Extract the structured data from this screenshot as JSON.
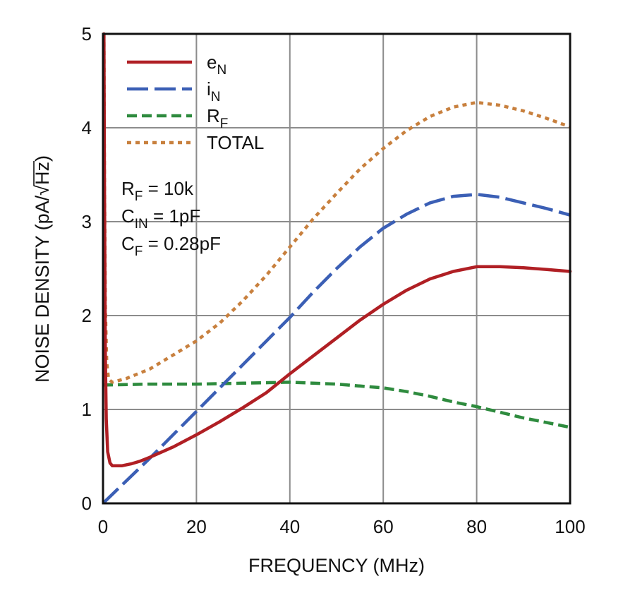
{
  "chart_data": {
    "type": "line",
    "xlabel": "FREQUENCY (MHz)",
    "ylabel_text": "NOISE DENSITY (pA/",
    "ylabel_radical": "√",
    "ylabel_radicand": "Hz",
    "ylabel_close": ")",
    "xlim": [
      0,
      100
    ],
    "ylim": [
      0,
      5
    ],
    "xticks": [
      "0",
      "20",
      "40",
      "60",
      "80",
      "100"
    ],
    "yticks": [
      "0",
      "1",
      "2",
      "3",
      "4",
      "5"
    ],
    "grid": true,
    "legend_position": "top-left",
    "series": [
      {
        "key": "eN",
        "name_main": "e",
        "name_sub": "N",
        "color": "#b01f24",
        "dash": "solid",
        "points": [
          [
            0.2,
            5.0
          ],
          [
            0.3,
            3.5
          ],
          [
            0.5,
            1.6
          ],
          [
            0.7,
            0.9
          ],
          [
            1,
            0.55
          ],
          [
            1.5,
            0.43
          ],
          [
            2,
            0.4
          ],
          [
            4,
            0.4
          ],
          [
            6,
            0.42
          ],
          [
            8,
            0.45
          ],
          [
            10,
            0.49
          ],
          [
            15,
            0.6
          ],
          [
            20,
            0.73
          ],
          [
            25,
            0.87
          ],
          [
            30,
            1.02
          ],
          [
            35,
            1.18
          ],
          [
            40,
            1.38
          ],
          [
            45,
            1.57
          ],
          [
            50,
            1.76
          ],
          [
            55,
            1.95
          ],
          [
            60,
            2.12
          ],
          [
            65,
            2.27
          ],
          [
            70,
            2.39
          ],
          [
            75,
            2.47
          ],
          [
            80,
            2.52
          ],
          [
            85,
            2.52
          ],
          [
            90,
            2.51
          ],
          [
            95,
            2.49
          ],
          [
            100,
            2.47
          ]
        ]
      },
      {
        "key": "iN",
        "name_main": "i",
        "name_sub": "N",
        "color": "#3b5fb5",
        "dash": "long-dash",
        "points": [
          [
            0,
            0
          ],
          [
            5,
            0.24
          ],
          [
            10,
            0.48
          ],
          [
            15,
            0.73
          ],
          [
            20,
            0.98
          ],
          [
            25,
            1.23
          ],
          [
            30,
            1.48
          ],
          [
            35,
            1.73
          ],
          [
            40,
            1.98
          ],
          [
            45,
            2.25
          ],
          [
            50,
            2.5
          ],
          [
            55,
            2.73
          ],
          [
            60,
            2.93
          ],
          [
            65,
            3.08
          ],
          [
            70,
            3.2
          ],
          [
            75,
            3.27
          ],
          [
            80,
            3.29
          ],
          [
            85,
            3.26
          ],
          [
            90,
            3.2
          ],
          [
            95,
            3.14
          ],
          [
            100,
            3.07
          ]
        ]
      },
      {
        "key": "RF",
        "name_main": "R",
        "name_sub": "F",
        "color": "#2e8b3e",
        "dash": "dash",
        "points": [
          [
            0,
            1.26
          ],
          [
            10,
            1.27
          ],
          [
            20,
            1.27
          ],
          [
            30,
            1.28
          ],
          [
            40,
            1.29
          ],
          [
            50,
            1.27
          ],
          [
            55,
            1.25
          ],
          [
            60,
            1.23
          ],
          [
            65,
            1.19
          ],
          [
            70,
            1.14
          ],
          [
            75,
            1.08
          ],
          [
            80,
            1.03
          ],
          [
            85,
            0.97
          ],
          [
            90,
            0.91
          ],
          [
            95,
            0.86
          ],
          [
            100,
            0.81
          ]
        ]
      },
      {
        "key": "TOTAL",
        "name_main": "TOTAL",
        "name_sub": "",
        "color": "#c8803e",
        "dash": "dot",
        "points": [
          [
            0.2,
            5.0
          ],
          [
            0.3,
            3.6
          ],
          [
            0.5,
            2.1
          ],
          [
            0.8,
            1.5
          ],
          [
            1.2,
            1.32
          ],
          [
            2,
            1.29
          ],
          [
            5,
            1.33
          ],
          [
            10,
            1.43
          ],
          [
            15,
            1.58
          ],
          [
            20,
            1.73
          ],
          [
            25,
            1.92
          ],
          [
            30,
            2.16
          ],
          [
            35,
            2.43
          ],
          [
            40,
            2.73
          ],
          [
            45,
            3.03
          ],
          [
            50,
            3.3
          ],
          [
            55,
            3.56
          ],
          [
            60,
            3.78
          ],
          [
            65,
            3.97
          ],
          [
            70,
            4.12
          ],
          [
            75,
            4.22
          ],
          [
            80,
            4.27
          ],
          [
            85,
            4.24
          ],
          [
            90,
            4.18
          ],
          [
            95,
            4.1
          ],
          [
            100,
            4.01
          ]
        ]
      }
    ],
    "annotations": [
      {
        "main": "R",
        "sub": "F",
        "rest": " = 10k"
      },
      {
        "main": "C",
        "sub": "IN",
        "rest": " = 1pF"
      },
      {
        "main": "C",
        "sub": "F",
        "rest": " = 0.28pF"
      }
    ]
  }
}
